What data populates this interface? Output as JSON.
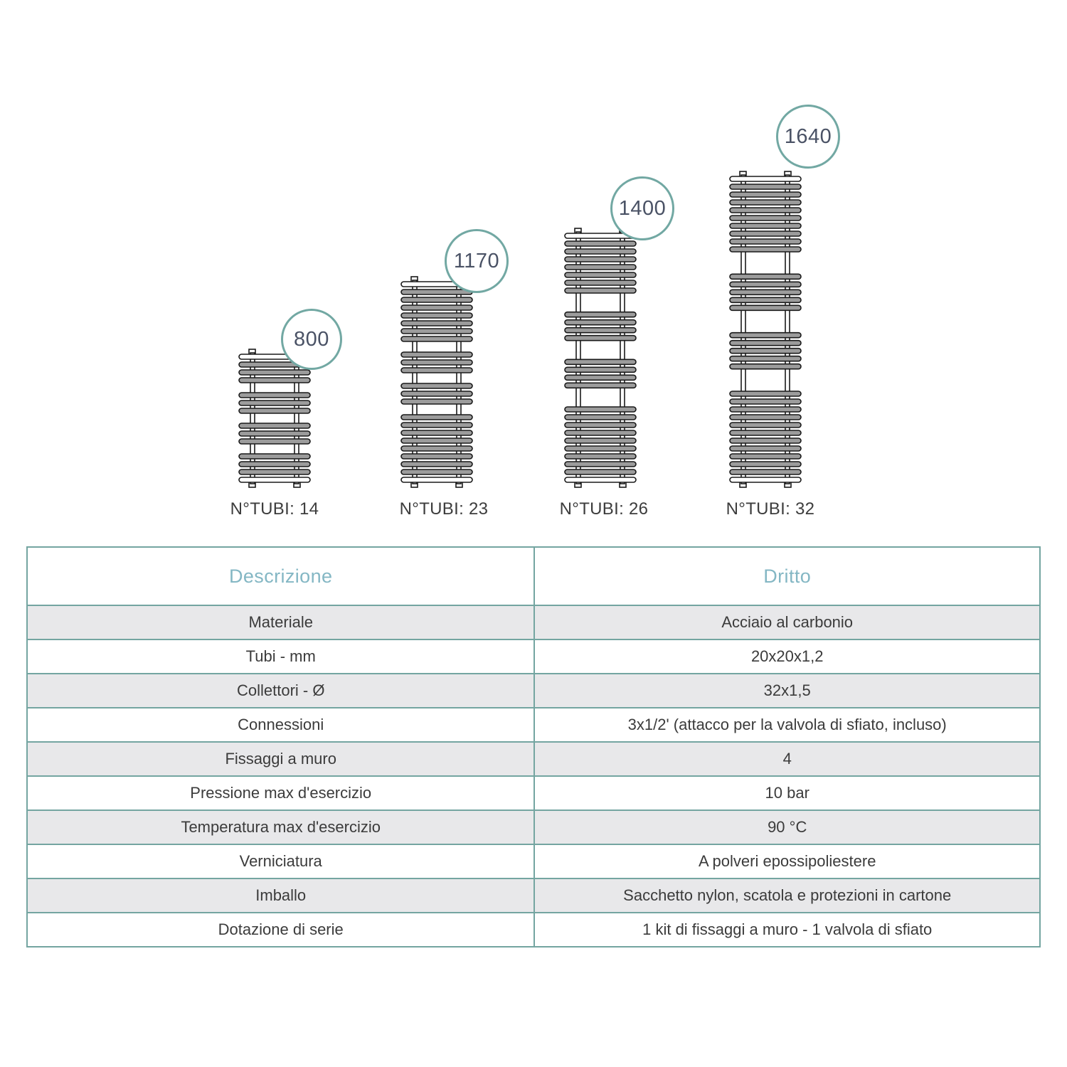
{
  "colors": {
    "accent_teal": "#72a8a3",
    "table_border": "#74a5a1",
    "header_text": "#84b7c4",
    "circle_text": "#4a5265",
    "row_alt_bg": "#e8e8ea",
    "body_text": "#3b3b3b",
    "tube_fill": "#9c9c9c",
    "outline": "#1a1a1a"
  },
  "diagram": {
    "models": [
      {
        "height_label": "800",
        "tubes_label": "N°TUBI: 14",
        "tubes_count": 14,
        "bar_groups": [
          4,
          3,
          3,
          4
        ]
      },
      {
        "height_label": "1170",
        "tubes_label": "N°TUBI: 23",
        "tubes_count": 23,
        "bar_groups": [
          8,
          3,
          3,
          9
        ]
      },
      {
        "height_label": "1400",
        "tubes_label": "N°TUBI: 26",
        "tubes_count": 26,
        "bar_groups": [
          8,
          4,
          4,
          10
        ]
      },
      {
        "height_label": "1640",
        "tubes_label": "N°TUBI: 32",
        "tubes_count": 32,
        "bar_groups": [
          10,
          5,
          5,
          12
        ]
      }
    ]
  },
  "table": {
    "header": [
      "Descrizione",
      "Dritto"
    ],
    "rows": [
      [
        "Materiale",
        "Acciaio al carbonio"
      ],
      [
        "Tubi - mm",
        "20x20x1,2"
      ],
      [
        "Collettori - Ø",
        "32x1,5"
      ],
      [
        "Connessioni",
        "3x1/2' (attacco per la valvola di sfiato, incluso)"
      ],
      [
        "Fissaggi a muro",
        "4"
      ],
      [
        "Pressione max d'esercizio",
        "10 bar"
      ],
      [
        "Temperatura max d'esercizio",
        "90 °C"
      ],
      [
        "Verniciatura",
        "A polveri epossipoliestere"
      ],
      [
        "Imballo",
        "Sacchetto nylon, scatola e protezioni in cartone"
      ],
      [
        "Dotazione di serie",
        "1 kit di fissaggi a muro - 1 valvola di sfiato"
      ]
    ]
  }
}
